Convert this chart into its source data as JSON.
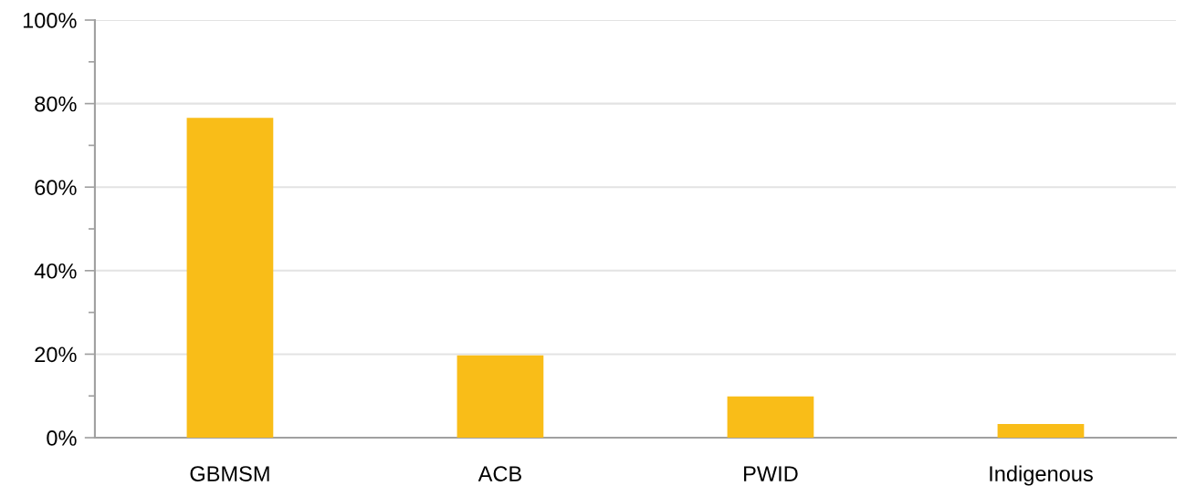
{
  "chart_data": {
    "type": "bar",
    "categories": [
      "GBMSM",
      "ACB",
      "PWID",
      "Indigenous"
    ],
    "values": [
      76.6,
      19.7,
      9.9,
      3.3
    ],
    "color": "#f9bd18",
    "ylim": [
      0,
      100
    ],
    "yticks": [
      {
        "value": 0,
        "label": "0%"
      },
      {
        "value": 10,
        "label": null
      },
      {
        "value": 20,
        "label": "20%"
      },
      {
        "value": 30,
        "label": null
      },
      {
        "value": 40,
        "label": "40%"
      },
      {
        "value": 50,
        "label": null
      },
      {
        "value": 60,
        "label": "60%"
      },
      {
        "value": 70,
        "label": null
      },
      {
        "value": 80,
        "label": "80%"
      },
      {
        "value": 90,
        "label": null
      },
      {
        "value": 100,
        "label": "100%"
      }
    ],
    "grid": "y",
    "legend": false
  }
}
